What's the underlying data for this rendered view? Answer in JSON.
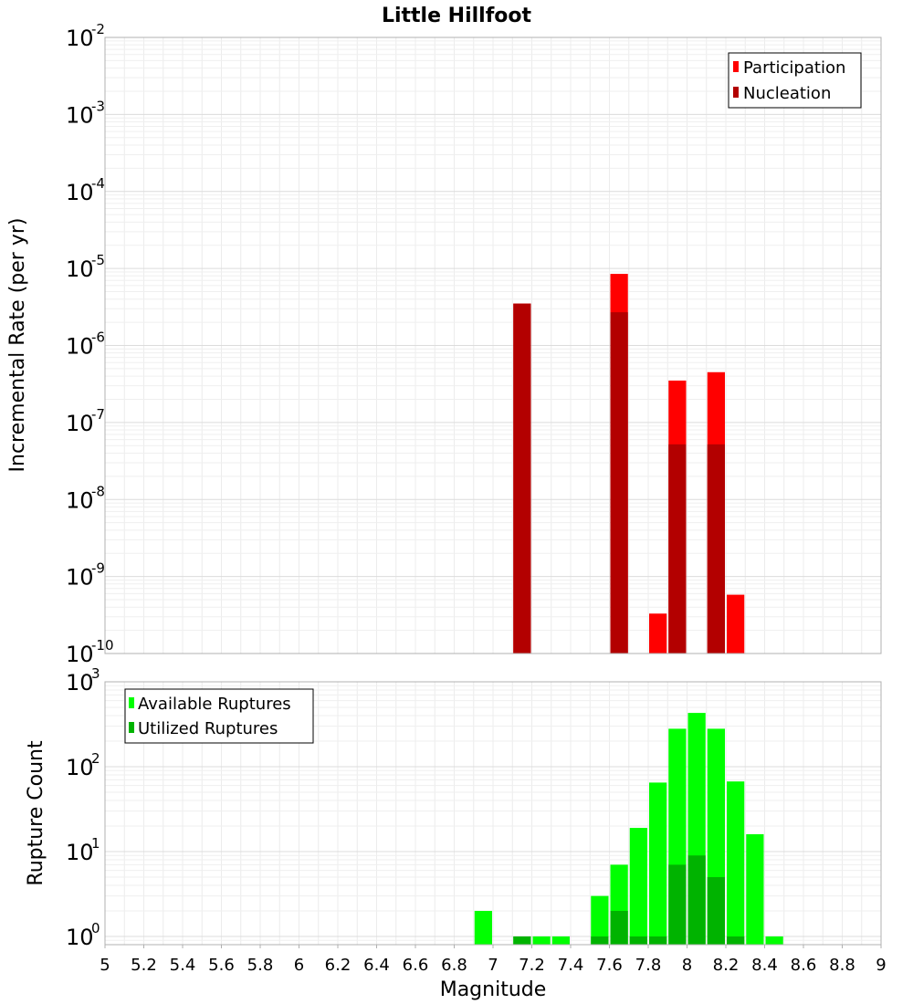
{
  "chart_data": [
    {
      "type": "bar",
      "title": "Little Hillfoot",
      "ylabel": "Incremental Rate (per yr)",
      "xlabel": "",
      "xlim": [
        5,
        9
      ],
      "ylim": [
        1e-10,
        0.01
      ],
      "yscale": "log",
      "grid": true,
      "legend_placement": "top-right",
      "bar_width": 0.1,
      "yticks": [
        {
          "base": "10",
          "exp": "-10",
          "value": 1e-10
        },
        {
          "base": "10",
          "exp": "-9",
          "value": 1e-09
        },
        {
          "base": "10",
          "exp": "-8",
          "value": 1e-08
        },
        {
          "base": "10",
          "exp": "-7",
          "value": 1e-07
        },
        {
          "base": "10",
          "exp": "-6",
          "value": 1e-06
        },
        {
          "base": "10",
          "exp": "-5",
          "value": 1e-05
        },
        {
          "base": "10",
          "exp": "-4",
          "value": 0.0001
        },
        {
          "base": "10",
          "exp": "-3",
          "value": 0.001
        },
        {
          "base": "10",
          "exp": "-2",
          "value": 0.01
        }
      ],
      "series": [
        {
          "name": "Participation",
          "color": "#ff0000",
          "x": [
            7.15,
            7.65,
            7.85,
            7.95,
            8.15,
            8.25
          ],
          "values": [
            3.5e-06,
            8.5e-06,
            3.3e-10,
            3.5e-07,
            4.5e-07,
            5.8e-10
          ]
        },
        {
          "name": "Nucleation",
          "color": "#b30000",
          "x": [
            7.15,
            7.65,
            7.95,
            8.15
          ],
          "values": [
            3.5e-06,
            2.7e-06,
            5.2e-08,
            5.2e-08
          ]
        }
      ]
    },
    {
      "type": "bar",
      "title": "",
      "ylabel": "Rupture Count",
      "xlabel": "Magnitude",
      "xlim": [
        5,
        9
      ],
      "ylim": [
        0.8,
        1000
      ],
      "yscale": "log",
      "grid": true,
      "legend_placement": "top-left",
      "bar_width": 0.1,
      "xticks": [
        "5",
        "5.2",
        "5.4",
        "5.6",
        "5.8",
        "6",
        "6.2",
        "6.4",
        "6.6",
        "6.8",
        "7",
        "7.2",
        "7.4",
        "7.6",
        "7.8",
        "8",
        "8.2",
        "8.4",
        "8.6",
        "8.8",
        "9"
      ],
      "yticks": [
        {
          "base": "10",
          "exp": "0",
          "value": 1
        },
        {
          "base": "10",
          "exp": "1",
          "value": 10
        },
        {
          "base": "10",
          "exp": "2",
          "value": 100
        },
        {
          "base": "10",
          "exp": "3",
          "value": 1000
        }
      ],
      "series": [
        {
          "name": "Available Ruptures",
          "color": "#00ff00",
          "x": [
            6.95,
            7.15,
            7.25,
            7.35,
            7.55,
            7.65,
            7.75,
            7.85,
            7.95,
            8.05,
            8.15,
            8.25,
            8.35,
            8.45
          ],
          "values": [
            2,
            1,
            1,
            1,
            3,
            7,
            19,
            65,
            280,
            430,
            280,
            67,
            16,
            1
          ]
        },
        {
          "name": "Utilized Ruptures",
          "color": "#00b300",
          "x": [
            7.15,
            7.55,
            7.65,
            7.75,
            7.85,
            7.95,
            8.05,
            8.15,
            8.25
          ],
          "values": [
            1,
            1,
            2,
            1,
            1,
            7,
            9,
            5,
            1
          ]
        }
      ]
    }
  ]
}
